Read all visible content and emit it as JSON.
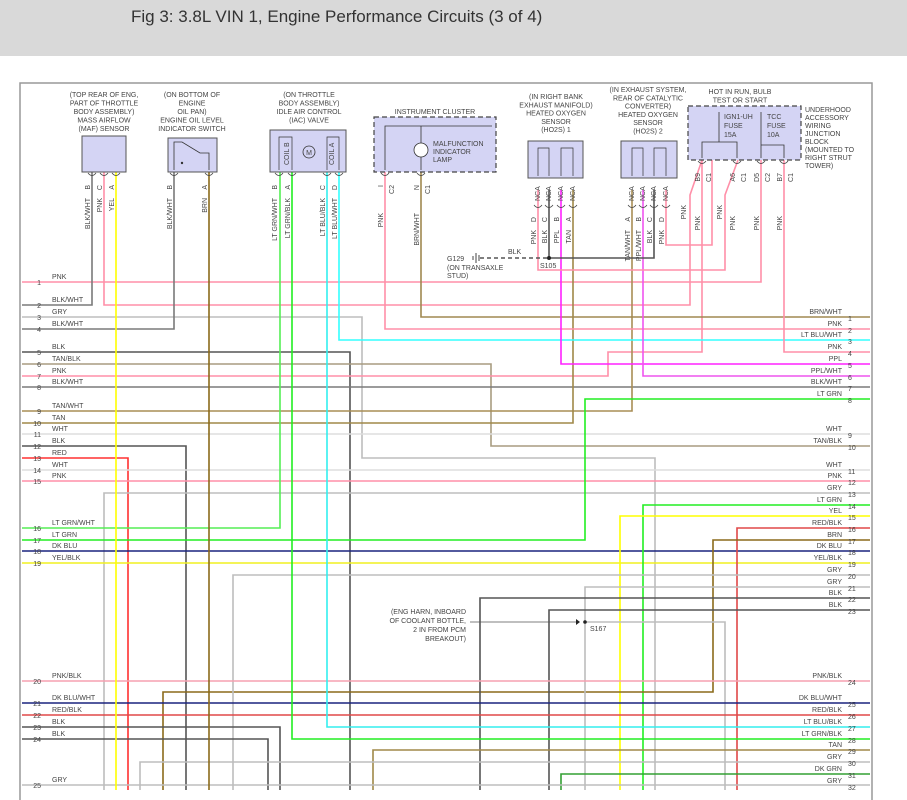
{
  "title": "Fig 3: 3.8L VIN 1, Engine Performance Circuits (3 of 4)",
  "wire_colors": {
    "PNK": "#ff8fa8",
    "BLK/WHT": "#7a7a7a",
    "GRY": "#bdbdbd",
    "BLK": "#555555",
    "TAN/BLK": "#a89c80",
    "TAN/WHT": "#a88d55",
    "TAN": "#a08848",
    "WHT": "#dddddd",
    "RED": "#ff3030",
    "LT GRN/WHT": "#55ee55",
    "LT GRN": "#22ee22",
    "DK BLU": "#1a237e",
    "YEL/BLK": "#f0f020",
    "PNK/BLK": "#f5a0b0",
    "DK BLU/WHT": "#1a237e",
    "RED/BLK": "#e04848",
    "BRN/WHT": "#a08850",
    "LT BLU/WHT": "#33ffff",
    "PPL": "#ff22ff",
    "PPL/WHT": "#ee55ee",
    "YEL": "#ffff00",
    "BRN": "#8b6a1a",
    "LT BLU/BLK": "#33eeee",
    "LT GRN/BLK": "#22ee22",
    "DK GRN": "#33a033"
  },
  "box_fill": "#d4d4f4",
  "components": [
    {
      "label": [
        "(TOP REAR OF ENG,",
        "PART OF THROTTLE",
        "BODY ASSEMBLY)",
        "MASS AIRFLOW",
        "(MAF) SENSOR"
      ],
      "pins": [
        {
          "pin": "B",
          "wire": "BLK/WHT"
        },
        {
          "pin": "C",
          "wire": "PNK"
        },
        {
          "pin": "A",
          "wire": "YEL"
        }
      ]
    },
    {
      "label": [
        "(ON BOTTOM OF",
        "ENGINE",
        "OIL PAN)",
        "ENGINE OIL LEVEL",
        "INDICATOR SWITCH"
      ],
      "pins": [
        {
          "pin": "B",
          "wire": "BLK/WHT"
        },
        {
          "pin": "A",
          "wire": "BRN"
        }
      ]
    },
    {
      "label": [
        "(ON THROTTLE",
        "BODY ASSEMBLY)",
        "IDLE AIR CONTROL",
        "(IAC) VALVE"
      ],
      "coils": [
        "COIL B",
        "COIL A"
      ],
      "motor": "M",
      "pins": [
        {
          "pin": "B",
          "wire": "LT GRN/WHT"
        },
        {
          "pin": "A",
          "wire": "LT GRN/BLK"
        },
        {
          "pin": "C",
          "wire": "LT BLU/BLK"
        },
        {
          "pin": "D",
          "wire": "LT BLU/WHT"
        }
      ]
    },
    {
      "label": [
        "INSTRUMENT CLUSTER"
      ],
      "inner": [
        "MALFUNCTION",
        "INDICATOR",
        "LAMP"
      ],
      "pins": [
        {
          "pin": "I",
          "conn": "C2",
          "wire": "PNK"
        },
        {
          "pin": "N",
          "conn": "C1",
          "wire": "BRN/WHT"
        }
      ]
    },
    {
      "label": [
        "(IN RIGHT BANK",
        "EXHAUST MANIFOLD)",
        "HEATED OXYGEN",
        "SENSOR",
        "(HO2S) 1"
      ],
      "pins": [
        {
          "pin": "D",
          "conn": "NCA",
          "wire": "PNK"
        },
        {
          "pin": "C",
          "conn": "NCA",
          "wire": "BLK"
        },
        {
          "pin": "B",
          "conn": "NCA",
          "wire": "PPL"
        },
        {
          "pin": "A",
          "conn": "NCA",
          "wire": "TAN"
        }
      ]
    },
    {
      "label": [
        "(IN EXHAUST SYSTEM,",
        "REAR OF CATALYTIC",
        "CONVERTER)",
        "HEATED OXYGEN",
        "SENSOR",
        "(HO2S) 2"
      ],
      "pins": [
        {
          "pin": "A",
          "conn": "NCA",
          "wire": "TAN/WHT"
        },
        {
          "pin": "B",
          "conn": "NCA",
          "wire": "PPL/WHT"
        },
        {
          "pin": "C",
          "conn": "NCA",
          "wire": "BLK"
        },
        {
          "pin": "D",
          "conn": "NCA",
          "wire": "PNK"
        }
      ]
    },
    {
      "label": [
        "HOT IN RUN, BULB",
        "TEST OR START"
      ],
      "side": [
        "UNDERHOOD",
        "ACCESSORY",
        "WIRING",
        "JUNCTION",
        "BLOCK",
        "(MOUNTED TO",
        "RIGHT STRUT",
        "TOWER)"
      ],
      "fuses": [
        [
          "IGN1-UH",
          "FUSE",
          "15A"
        ],
        [
          "TCC",
          "FUSE",
          "10A"
        ]
      ],
      "pins": [
        {
          "pin": "B9",
          "conn": "C1",
          "wire": "PNK"
        },
        {
          "pin": "A6",
          "conn": "C1",
          "wire": "PNK"
        },
        {
          "pin": "D5",
          "conn": "C2",
          "wire": "PNK"
        },
        {
          "pin": "B7",
          "conn": "C1",
          "wire": "PNK"
        }
      ],
      "extra_wire_labels": [
        "PNK",
        "PNK"
      ]
    }
  ],
  "ground": {
    "id": "G129",
    "note": [
      "(ON TRANSAXLE",
      "STUD)"
    ],
    "wire": "BLK"
  },
  "splices": [
    {
      "id": "S105"
    },
    {
      "id": "S167",
      "note": [
        "(ENG HARN, INBOARD",
        "OF COOLANT BOTTLE,",
        "2 IN FROM PCM",
        "BREAKOUT)"
      ]
    }
  ],
  "left_rows": [
    {
      "n": "1",
      "wire": "PNK"
    },
    {
      "n": "2",
      "wire": "BLK/WHT"
    },
    {
      "n": "3",
      "wire": "GRY"
    },
    {
      "n": "4",
      "wire": "BLK/WHT"
    },
    {
      "n": "5",
      "wire": "BLK"
    },
    {
      "n": "6",
      "wire": "TAN/BLK"
    },
    {
      "n": "7",
      "wire": "PNK"
    },
    {
      "n": "8",
      "wire": "BLK/WHT"
    },
    {
      "n": "9",
      "wire": "TAN/WHT"
    },
    {
      "n": "10",
      "wire": "TAN"
    },
    {
      "n": "11",
      "wire": "WHT"
    },
    {
      "n": "12",
      "wire": "BLK"
    },
    {
      "n": "13",
      "wire": "RED"
    },
    {
      "n": "14",
      "wire": "WHT"
    },
    {
      "n": "15",
      "wire": "PNK"
    },
    {
      "n": "16",
      "wire": "LT GRN/WHT"
    },
    {
      "n": "17",
      "wire": "LT GRN"
    },
    {
      "n": "18",
      "wire": "DK BLU"
    },
    {
      "n": "19",
      "wire": "YEL/BLK"
    },
    {
      "n": "20",
      "wire": "PNK/BLK"
    },
    {
      "n": "21",
      "wire": "DK BLU/WHT"
    },
    {
      "n": "22",
      "wire": "RED/BLK"
    },
    {
      "n": "23",
      "wire": "BLK"
    },
    {
      "n": "24",
      "wire": "BLK"
    },
    {
      "n": "25",
      "wire": "GRY"
    }
  ],
  "right_rows": [
    {
      "n": "1",
      "wire": "BRN/WHT"
    },
    {
      "n": "2",
      "wire": "PNK"
    },
    {
      "n": "3",
      "wire": "LT BLU/WHT"
    },
    {
      "n": "4",
      "wire": "PNK"
    },
    {
      "n": "5",
      "wire": "PPL"
    },
    {
      "n": "6",
      "wire": "PPL/WHT"
    },
    {
      "n": "7",
      "wire": "BLK/WHT"
    },
    {
      "n": "8",
      "wire": "LT GRN"
    },
    {
      "n": "9",
      "wire": "WHT"
    },
    {
      "n": "10",
      "wire": "TAN/BLK"
    },
    {
      "n": "11",
      "wire": "WHT"
    },
    {
      "n": "12",
      "wire": "PNK"
    },
    {
      "n": "13",
      "wire": "GRY"
    },
    {
      "n": "14",
      "wire": "LT GRN"
    },
    {
      "n": "15",
      "wire": "YEL"
    },
    {
      "n": "16",
      "wire": "RED/BLK"
    },
    {
      "n": "17",
      "wire": "BRN"
    },
    {
      "n": "18",
      "wire": "DK BLU"
    },
    {
      "n": "19",
      "wire": "YEL/BLK"
    },
    {
      "n": "20",
      "wire": "GRY"
    },
    {
      "n": "21",
      "wire": "GRY"
    },
    {
      "n": "22",
      "wire": "BLK"
    },
    {
      "n": "23",
      "wire": "BLK"
    },
    {
      "n": "24",
      "wire": "PNK/BLK"
    },
    {
      "n": "25",
      "wire": "DK BLU/WHT"
    },
    {
      "n": "26",
      "wire": "RED/BLK"
    },
    {
      "n": "27",
      "wire": "LT BLU/BLK"
    },
    {
      "n": "28",
      "wire": "LT GRN/BLK"
    },
    {
      "n": "29",
      "wire": "TAN"
    },
    {
      "n": "30",
      "wire": "GRY"
    },
    {
      "n": "31",
      "wire": "DK GRN"
    },
    {
      "n": "32",
      "wire": "GRY"
    }
  ]
}
